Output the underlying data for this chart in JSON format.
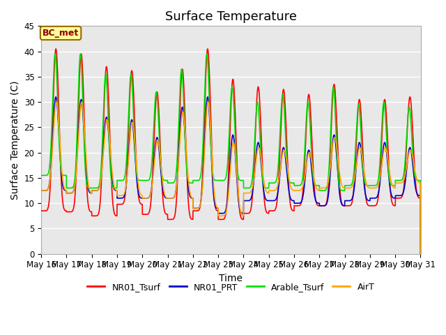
{
  "title": "Surface Temperature",
  "xlabel": "Time",
  "ylabel": "Surface Temperature (C)",
  "ylim": [
    0,
    45
  ],
  "yticks": [
    0,
    5,
    10,
    15,
    20,
    25,
    30,
    35,
    40,
    45
  ],
  "xtick_labels": [
    "May 16",
    "May 17",
    "May 18",
    "May 19",
    "May 20",
    "May 21",
    "May 22",
    "May 23",
    "May 24",
    "May 25",
    "May 26",
    "May 27",
    "May 28",
    "May 29",
    "May 30",
    "May 31"
  ],
  "annotation_text": "BC_met",
  "annotation_box_color": "#FFFF99",
  "annotation_box_border": "#996600",
  "legend_entries": [
    "NR01_Tsurf",
    "NR01_PRT",
    "Arable_Tsurf",
    "AirT"
  ],
  "line_colors": [
    "#FF0000",
    "#0000CC",
    "#00DD00",
    "#FFA500"
  ],
  "bg_color": "#E8E8E8",
  "grid_color": "#FFFFFF",
  "title_fontsize": 13,
  "label_fontsize": 10,
  "tick_fontsize": 8.5,
  "line_width": 1.2
}
